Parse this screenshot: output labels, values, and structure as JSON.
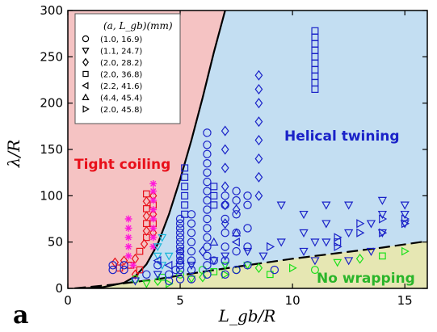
{
  "chart_data": {
    "type": "scatter",
    "panel_label": "a",
    "xlabel": "L_gb/R",
    "ylabel": "λ/R",
    "xlim": [
      0,
      16
    ],
    "ylim": [
      0,
      300
    ],
    "xticks": [
      0,
      5,
      10,
      15
    ],
    "yticks": [
      0,
      50,
      100,
      150,
      200,
      250,
      300
    ],
    "grid": false,
    "legend_position": "top-left",
    "legend_title": "(a, L_gb)(mm)",
    "regions": [
      {
        "label": "Tight coiling",
        "color": "#f5c3c3",
        "text_color": "#e8101a"
      },
      {
        "label": "Helical twining",
        "color": "#c3def2",
        "text_color": "#1a22c8"
      },
      {
        "label": "No wrapping",
        "color": "#e6e7b3",
        "text_color": "#2ab52a"
      }
    ],
    "boundaries": [
      {
        "name": "coiling-twining",
        "style": "solid",
        "points": [
          [
            0.5,
            0
          ],
          [
            1.5,
            1
          ],
          [
            2.5,
            6
          ],
          [
            3.0,
            13
          ],
          [
            3.5,
            26
          ],
          [
            4.0,
            48
          ],
          [
            4.5,
            80
          ],
          [
            5.0,
            118
          ],
          [
            5.5,
            160
          ],
          [
            6.0,
            206
          ],
          [
            6.5,
            255
          ],
          [
            7.0,
            300
          ]
        ]
      },
      {
        "name": "twining-wrapping",
        "style": "dashed",
        "points": [
          [
            0.3,
            0
          ],
          [
            2.0,
            4
          ],
          [
            4.0,
            10
          ],
          [
            6.0,
            18
          ],
          [
            8.0,
            25
          ],
          [
            10.0,
            32
          ],
          [
            12.0,
            38
          ],
          [
            14.0,
            44
          ],
          [
            16.0,
            51
          ]
        ]
      }
    ],
    "series": [
      {
        "name": "(1.0, 16.9)",
        "marker": "circle",
        "color": "#1a22c8",
        "points": [
          [
            2.0,
            20
          ],
          [
            2.0,
            25
          ],
          [
            2.5,
            20
          ],
          [
            2.5,
            25
          ],
          [
            4.5,
            8
          ],
          [
            4.5,
            15
          ],
          [
            4.8,
            20
          ],
          [
            5.0,
            10
          ],
          [
            5.0,
            20
          ],
          [
            5.0,
            25
          ],
          [
            5.0,
            30
          ],
          [
            5.0,
            35
          ],
          [
            5.0,
            40
          ],
          [
            5.0,
            45
          ],
          [
            5.0,
            50
          ],
          [
            5.0,
            55
          ],
          [
            5.0,
            60
          ],
          [
            5.0,
            65
          ],
          [
            5.0,
            70
          ],
          [
            5.0,
            75
          ],
          [
            5.5,
            10
          ],
          [
            5.5,
            20
          ],
          [
            5.5,
            30
          ],
          [
            5.5,
            40
          ],
          [
            5.5,
            50
          ],
          [
            5.5,
            60
          ],
          [
            5.5,
            70
          ],
          [
            5.5,
            80
          ],
          [
            6.2,
            15
          ],
          [
            6.2,
            25
          ],
          [
            6.2,
            35
          ],
          [
            6.2,
            45
          ],
          [
            6.2,
            55
          ],
          [
            6.2,
            65
          ],
          [
            6.2,
            75
          ],
          [
            6.2,
            85
          ],
          [
            6.2,
            95
          ],
          [
            6.2,
            105
          ],
          [
            6.2,
            115
          ],
          [
            6.2,
            125
          ],
          [
            6.2,
            135
          ],
          [
            6.2,
            145
          ],
          [
            6.2,
            155
          ],
          [
            6.2,
            168
          ],
          [
            7.0,
            15
          ],
          [
            7.0,
            30
          ],
          [
            7.0,
            45
          ],
          [
            7.0,
            60
          ],
          [
            7.0,
            75
          ],
          [
            7.0,
            90
          ],
          [
            7.0,
            100
          ],
          [
            7.5,
            20
          ],
          [
            7.5,
            40
          ],
          [
            7.5,
            60
          ],
          [
            7.5,
            80
          ],
          [
            7.5,
            95
          ],
          [
            7.5,
            105
          ],
          [
            8.0,
            25
          ],
          [
            8.0,
            45
          ],
          [
            8.0,
            65
          ],
          [
            8.0,
            90
          ],
          [
            8.0,
            100
          ],
          [
            9.2,
            20
          ],
          [
            6.5,
            30
          ],
          [
            4.0,
            25
          ],
          [
            3.5,
            15
          ]
        ]
      },
      {
        "name": "(1.1, 24.7)",
        "marker": "triangle-down",
        "color": "#1a22c8",
        "points": [
          [
            3.0,
            8
          ],
          [
            4.0,
            15
          ],
          [
            5.5,
            25
          ],
          [
            6.5,
            30
          ],
          [
            7.0,
            35
          ],
          [
            8.0,
            40
          ],
          [
            8.7,
            35
          ],
          [
            9.5,
            50
          ],
          [
            9.5,
            90
          ],
          [
            10.5,
            40
          ],
          [
            10.5,
            60
          ],
          [
            10.5,
            80
          ],
          [
            11.5,
            50
          ],
          [
            11.5,
            70
          ],
          [
            11.5,
            90
          ],
          [
            12.5,
            30
          ],
          [
            12.5,
            60
          ],
          [
            12.5,
            90
          ],
          [
            13.5,
            40
          ],
          [
            13.5,
            70
          ],
          [
            14.0,
            60
          ],
          [
            14.0,
            80
          ],
          [
            14.0,
            95
          ],
          [
            15.0,
            70
          ],
          [
            15.0,
            80
          ],
          [
            15.0,
            90
          ],
          [
            11.0,
            30
          ],
          [
            11.0,
            50
          ]
        ]
      },
      {
        "name": "(2.0, 28.2)",
        "marker": "diamond",
        "color": "#1a22c8",
        "points": [
          [
            7.0,
            70
          ],
          [
            7.0,
            90
          ],
          [
            7.0,
            110
          ],
          [
            7.0,
            130
          ],
          [
            7.0,
            150
          ],
          [
            7.0,
            170
          ],
          [
            8.5,
            100
          ],
          [
            8.5,
            120
          ],
          [
            8.5,
            140
          ],
          [
            8.5,
            160
          ],
          [
            8.5,
            180
          ],
          [
            8.5,
            200
          ],
          [
            8.5,
            215
          ],
          [
            8.5,
            230
          ],
          [
            7.5,
            85
          ],
          [
            6.0,
            40
          ]
        ]
      },
      {
        "name": "(2.0, 36.8)",
        "marker": "square",
        "color": "#1a22c8",
        "points": [
          [
            5.2,
            80
          ],
          [
            5.2,
            90
          ],
          [
            5.2,
            100
          ],
          [
            5.2,
            110
          ],
          [
            5.2,
            120
          ],
          [
            5.2,
            130
          ],
          [
            11.0,
            215
          ],
          [
            11.0,
            222
          ],
          [
            11.0,
            229
          ],
          [
            11.0,
            236
          ],
          [
            11.0,
            243
          ],
          [
            11.0,
            250
          ],
          [
            11.0,
            257
          ],
          [
            11.0,
            264
          ],
          [
            11.0,
            271
          ],
          [
            11.0,
            278
          ],
          [
            12.0,
            50
          ],
          [
            6.5,
            90
          ],
          [
            6.5,
            100
          ],
          [
            6.5,
            110
          ]
        ]
      },
      {
        "name": "(2.2, 41.6)",
        "marker": "triangle-left",
        "color": "#1a22c8",
        "points": [
          [
            4.0,
            30
          ],
          [
            4.5,
            25
          ],
          [
            5.0,
            40
          ],
          [
            7.5,
            50
          ]
        ]
      },
      {
        "name": "(4.4, 45.4)",
        "marker": "triangle-up",
        "color": "#1a22c8",
        "points": [
          [
            5.0,
            30
          ],
          [
            6.5,
            50
          ],
          [
            7.5,
            60
          ]
        ]
      },
      {
        "name": "(2.0, 45.8)",
        "marker": "triangle-right",
        "color": "#1a22c8",
        "points": [
          [
            12.0,
            45
          ],
          [
            12.0,
            55
          ],
          [
            13.0,
            60
          ],
          [
            13.0,
            70
          ],
          [
            14.0,
            60
          ],
          [
            14.0,
            75
          ],
          [
            15.0,
            70
          ],
          [
            15.0,
            75
          ],
          [
            9.0,
            45
          ]
        ]
      }
    ],
    "extra_groups": [
      {
        "region": "Tight coiling",
        "marker": "diamond-and-square",
        "color": "#e8101a",
        "points": [
          [
            2.1,
            28
          ],
          [
            2.3,
            22
          ],
          [
            2.5,
            30
          ],
          [
            2.8,
            25
          ],
          [
            3.0,
            32
          ],
          [
            3.2,
            40
          ],
          [
            3.4,
            48
          ],
          [
            3.5,
            55
          ],
          [
            3.5,
            62
          ],
          [
            3.5,
            70
          ],
          [
            3.5,
            78
          ],
          [
            3.5,
            86
          ],
          [
            3.5,
            94
          ],
          [
            3.5,
            102
          ],
          [
            3.8,
            60
          ],
          [
            3.8,
            70
          ],
          [
            3.8,
            80
          ],
          [
            3.8,
            90
          ],
          [
            3.8,
            100
          ],
          [
            3.2,
            20
          ],
          [
            3.0,
            15
          ]
        ]
      },
      {
        "region": "Tight coiling",
        "marker": "asterisk",
        "color": "#ff1ad9",
        "points": [
          [
            2.7,
            35
          ],
          [
            2.7,
            45
          ],
          [
            2.7,
            55
          ],
          [
            2.7,
            65
          ],
          [
            2.7,
            75
          ],
          [
            3.8,
            45
          ],
          [
            3.8,
            55
          ],
          [
            3.8,
            65
          ],
          [
            3.8,
            75
          ],
          [
            3.8,
            85
          ],
          [
            3.8,
            95
          ],
          [
            3.8,
            105
          ],
          [
            3.8,
            113
          ],
          [
            2.9,
            25
          ]
        ]
      },
      {
        "region": "Helical twining",
        "marker": "triangle-down",
        "color": "#19b5d8",
        "points": [
          [
            4.0,
            35
          ],
          [
            4.0,
            45
          ],
          [
            4.2,
            55
          ],
          [
            4.5,
            35
          ],
          [
            4.2,
            25
          ]
        ]
      },
      {
        "region": "No wrapping",
        "marker": "mixed",
        "color": "#19e019",
        "points": [
          [
            3.0,
            10
          ],
          [
            3.5,
            5
          ],
          [
            4.0,
            8
          ],
          [
            4.2,
            12
          ],
          [
            4.5,
            5
          ],
          [
            5.0,
            15
          ],
          [
            5.5,
            10
          ],
          [
            6.0,
            12
          ],
          [
            6.5,
            18
          ],
          [
            7.0,
            15
          ],
          [
            7.5,
            20
          ],
          [
            8.0,
            25
          ],
          [
            8.5,
            22
          ],
          [
            9.0,
            15
          ],
          [
            10.0,
            22
          ],
          [
            11.0,
            20
          ],
          [
            12.0,
            28
          ],
          [
            13.0,
            32
          ],
          [
            14.0,
            35
          ],
          [
            15.0,
            40
          ],
          [
            6.0,
            20
          ],
          [
            7.0,
            25
          ]
        ]
      }
    ]
  }
}
